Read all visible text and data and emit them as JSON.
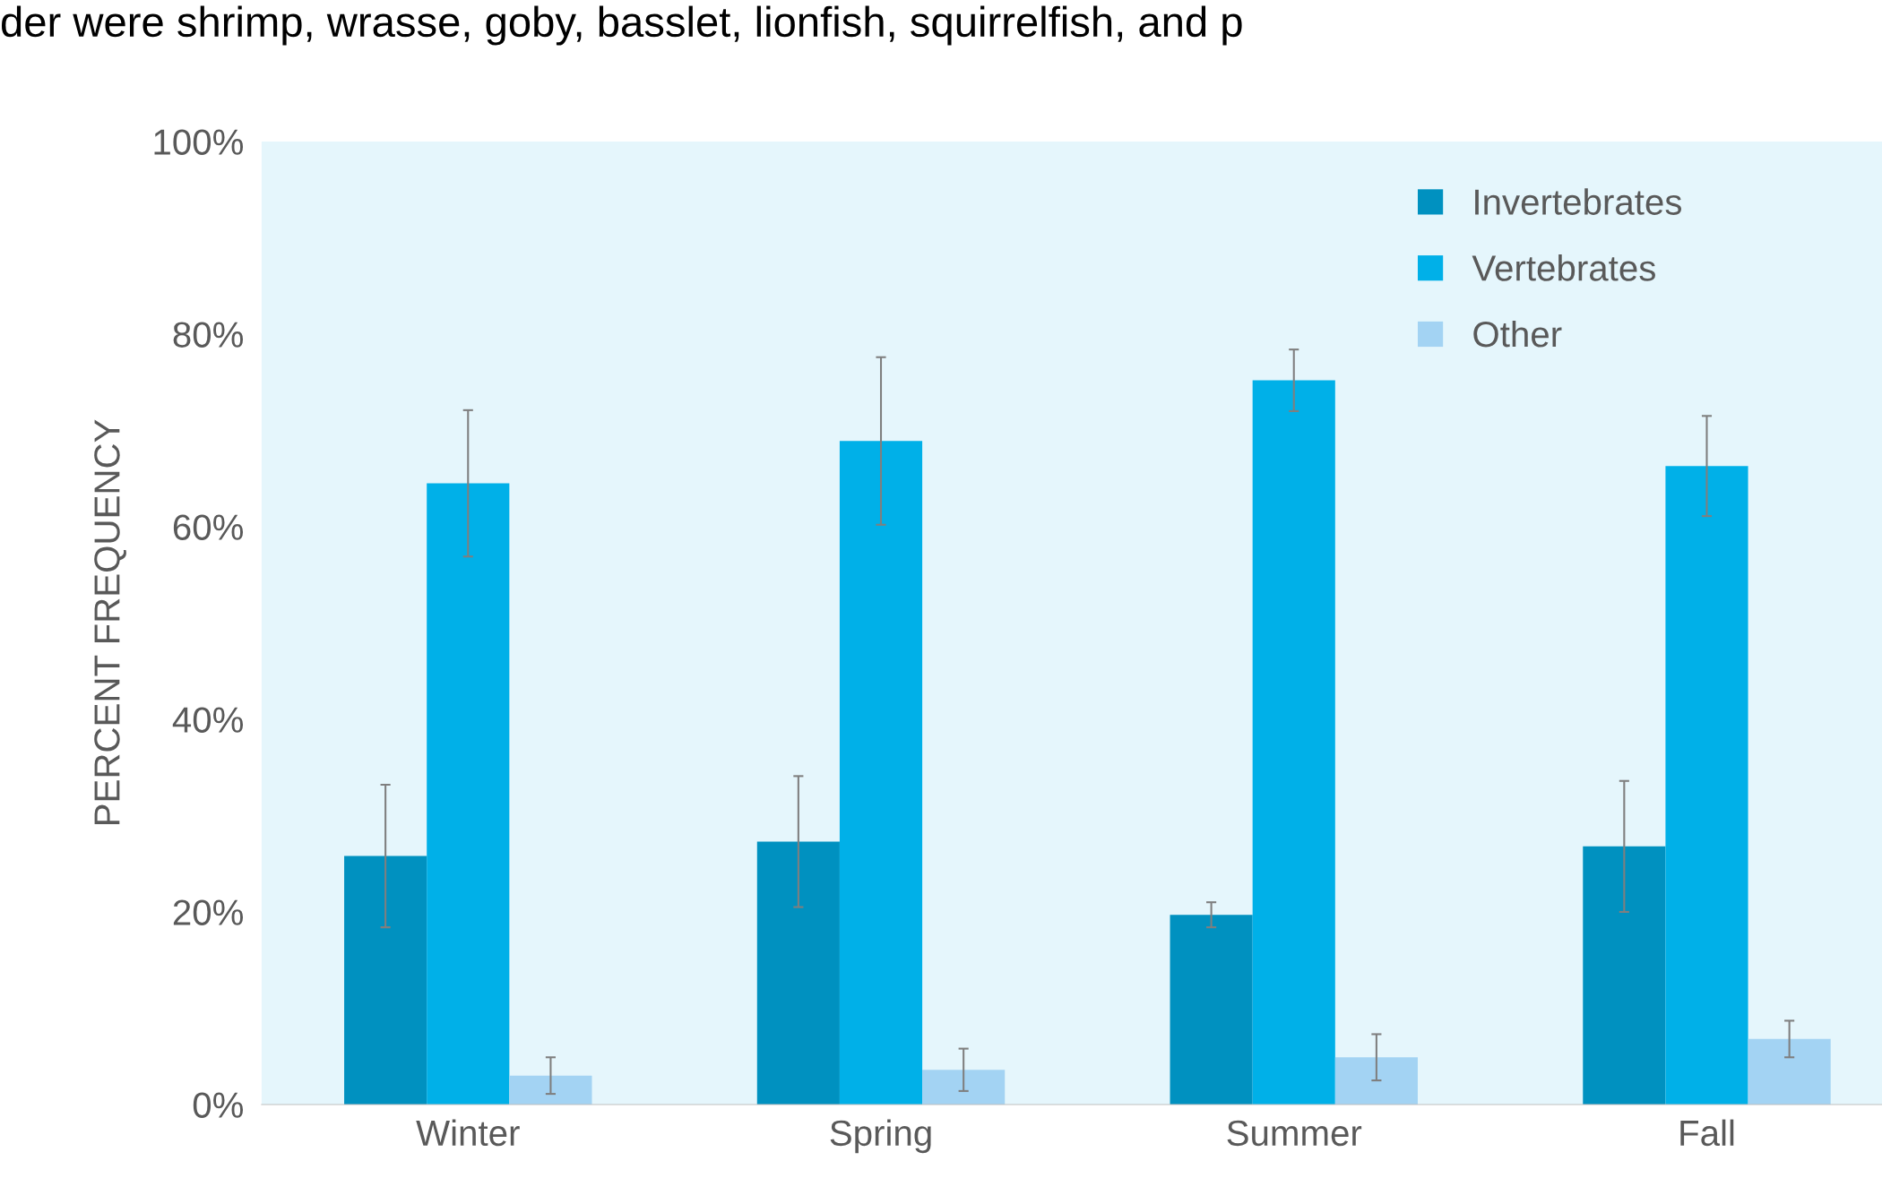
{
  "chart_data": {
    "type": "bar",
    "title": "der were shrimp, wrasse, goby, basslet, lionfish, squirrelfish, and p",
    "ylabel": "PERCENT FREQUENCY",
    "categories": [
      "Winter",
      "Spring",
      "Summer",
      "Fall"
    ],
    "series": [
      {
        "name": "Invertebrates",
        "color": "#0091c0",
        "values": [
          25.8,
          27.3,
          19.7,
          26.8
        ],
        "errors": [
          7.4,
          6.8,
          1.3,
          6.8
        ]
      },
      {
        "name": "Vertebrates",
        "color": "#00b0e8",
        "values": [
          64.5,
          68.9,
          75.2,
          66.3
        ],
        "errors": [
          7.6,
          8.7,
          3.2,
          5.2
        ]
      },
      {
        "name": "Other",
        "color": "#a3d3f3",
        "values": [
          3.0,
          3.6,
          4.9,
          6.8
        ],
        "errors": [
          1.9,
          2.2,
          2.4,
          1.9
        ]
      }
    ],
    "ylim": [
      0,
      100
    ],
    "yticks": [
      {
        "value": 0,
        "label": "0%"
      },
      {
        "value": 20,
        "label": "20%"
      },
      {
        "value": 40,
        "label": "40%"
      },
      {
        "value": 60,
        "label": "60%"
      },
      {
        "value": 80,
        "label": "80%"
      },
      {
        "value": 100,
        "label": "100%"
      }
    ],
    "legend": "top right",
    "grid": false
  }
}
